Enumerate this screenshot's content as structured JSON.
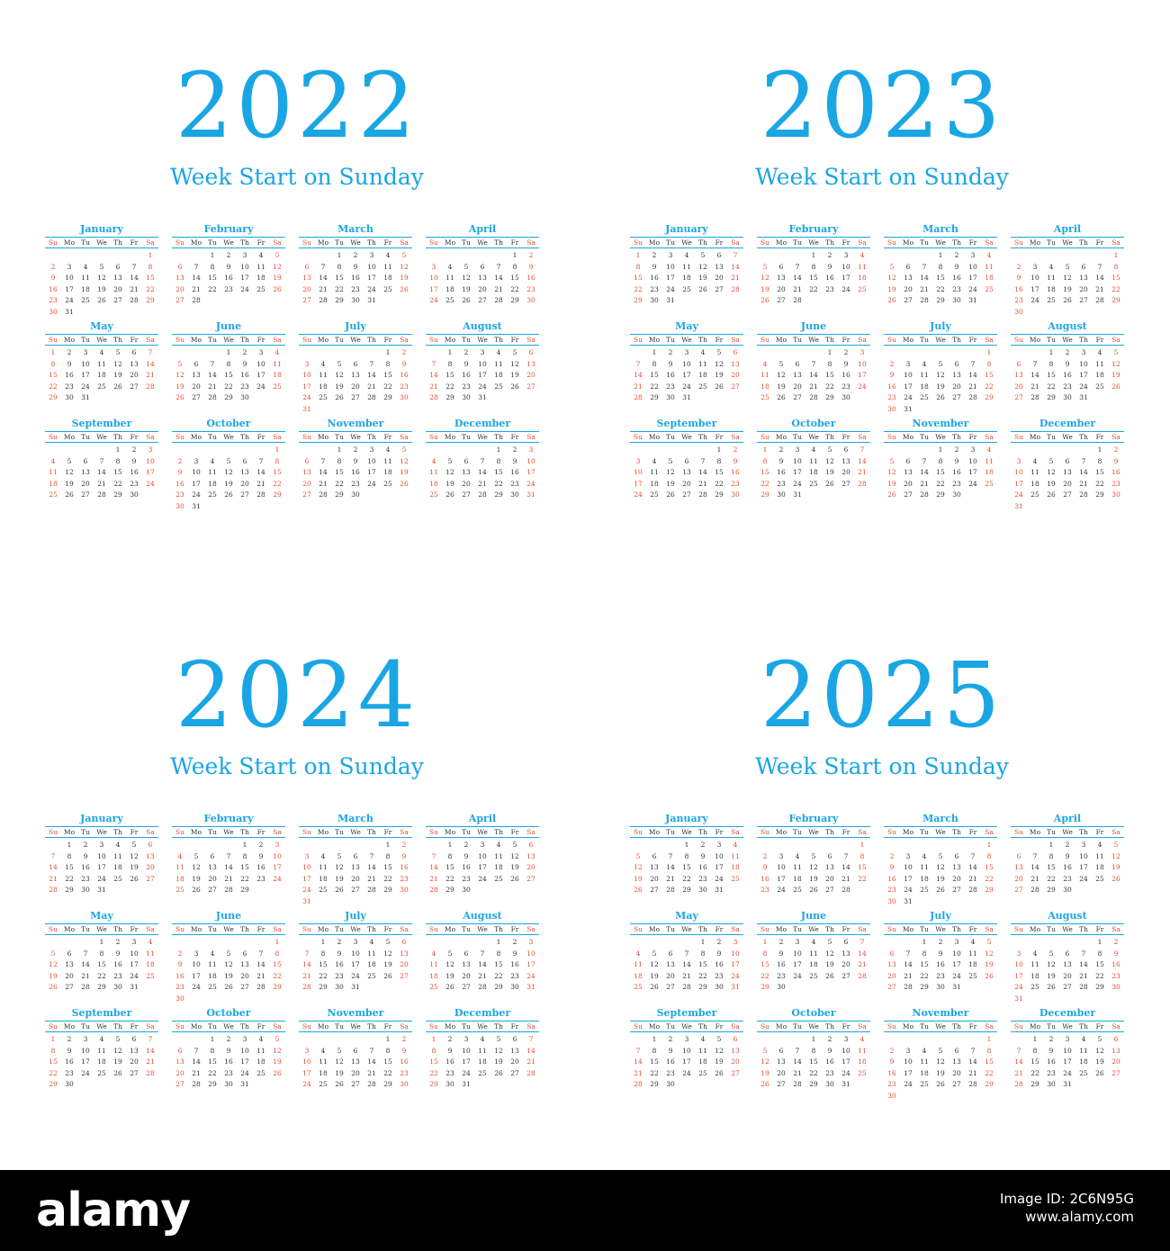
{
  "subtitle": "Week Start on Sunday",
  "weekdays": [
    "Su",
    "Mo",
    "Tu",
    "We",
    "Th",
    "Fr",
    "Sa"
  ],
  "month_names": [
    "January",
    "February",
    "March",
    "April",
    "May",
    "June",
    "July",
    "August",
    "September",
    "October",
    "November",
    "December"
  ],
  "years": [
    {
      "year": "2022",
      "start_weekday": 6
    },
    {
      "year": "2023",
      "start_weekday": 0
    },
    {
      "year": "2024",
      "start_weekday": 1
    },
    {
      "year": "2025",
      "start_weekday": 3
    }
  ],
  "colors": {
    "accent": "#1aa6e4",
    "weekend": "#e34a2f",
    "text": "#333333"
  },
  "footer": {
    "logo": "alamy",
    "image_id": "Image ID: 2C6N95G",
    "site": "www.alamy.com"
  }
}
